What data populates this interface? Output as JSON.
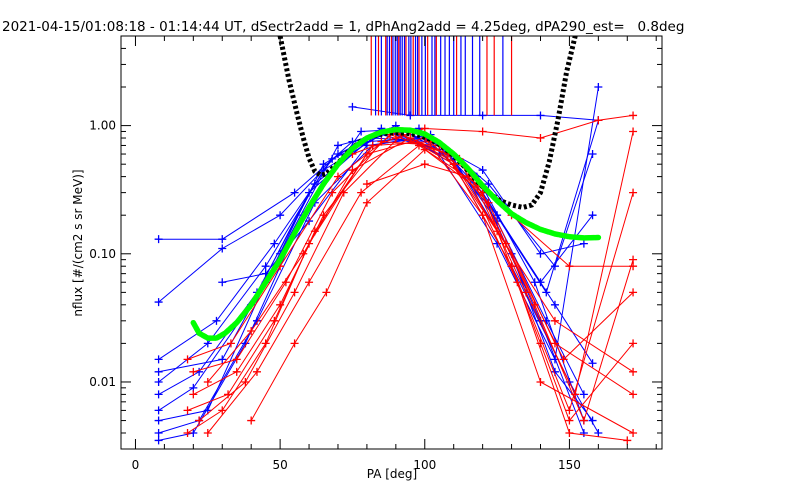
{
  "chart_data": {
    "type": "line",
    "title": "2021-04-15/01:08:18 - 01:14:44 UT, dSectr2add = 1, dPhAng2add = 4.25deg, dPA290_est=   0.8deg",
    "xlabel": "PA [deg]",
    "ylabel": "nflux [#/(cm2 s sr MeV)]",
    "xlim": [
      -5,
      182
    ],
    "ylim": [
      0.003,
      5.0
    ],
    "yscale": "log",
    "grid": false,
    "x_ticks": [
      0,
      50,
      100,
      150
    ],
    "x_tick_labels": [
      "0",
      "50",
      "100",
      "150"
    ],
    "y_ticks": [
      0.01,
      0.1,
      1.0
    ],
    "y_tick_labels": [
      "0.01",
      "0.10",
      "1.00"
    ],
    "colors": {
      "series_a": "#0000ff",
      "series_b": "#ff0000",
      "fit_black": "#000000",
      "fit_green": "#00ff00"
    },
    "series": [
      {
        "color": "blue",
        "marker": "+",
        "values": [
          [
            8,
            0.13
          ],
          [
            30,
            0.13
          ],
          [
            55,
            0.3
          ],
          [
            75,
            0.75
          ],
          [
            90,
            0.95
          ],
          [
            105,
            0.7
          ],
          [
            120,
            0.3
          ],
          [
            140,
            0.03
          ],
          [
            155,
            0.004
          ]
        ]
      },
      {
        "color": "blue",
        "marker": "+",
        "values": [
          [
            8,
            0.042
          ],
          [
            30,
            0.11
          ],
          [
            50,
            0.2
          ],
          [
            70,
            0.6
          ],
          [
            90,
            1.0
          ],
          [
            110,
            0.55
          ],
          [
            130,
            0.1
          ],
          [
            145,
            0.012
          ],
          [
            158,
            0.005
          ]
        ]
      },
      {
        "color": "blue",
        "marker": "+",
        "values": [
          [
            8,
            0.015
          ],
          [
            28,
            0.03
          ],
          [
            48,
            0.12
          ],
          [
            68,
            0.55
          ],
          [
            88,
            0.9
          ],
          [
            108,
            0.6
          ],
          [
            125,
            0.18
          ],
          [
            142,
            0.03
          ],
          [
            155,
            0.008
          ]
        ]
      },
      {
        "color": "blue",
        "marker": "+",
        "values": [
          [
            8,
            0.01
          ],
          [
            25,
            0.02
          ],
          [
            45,
            0.08
          ],
          [
            65,
            0.45
          ],
          [
            85,
            0.85
          ],
          [
            105,
            0.65
          ],
          [
            125,
            0.2
          ],
          [
            145,
            0.04
          ],
          [
            158,
            0.014
          ]
        ]
      },
      {
        "color": "blue",
        "marker": "+",
        "values": [
          [
            8,
            0.008
          ],
          [
            22,
            0.012
          ],
          [
            42,
            0.05
          ],
          [
            62,
            0.35
          ],
          [
            82,
            0.8
          ],
          [
            102,
            0.75
          ],
          [
            122,
            0.25
          ],
          [
            142,
            0.05
          ],
          [
            160,
            1.1
          ]
        ]
      },
      {
        "color": "blue",
        "marker": "+",
        "values": [
          [
            8,
            0.006
          ],
          [
            20,
            0.009
          ],
          [
            40,
            0.04
          ],
          [
            60,
            0.3
          ],
          [
            80,
            0.75
          ],
          [
            100,
            0.8
          ],
          [
            120,
            0.3
          ],
          [
            140,
            0.06
          ],
          [
            158,
            0.2
          ]
        ]
      },
      {
        "color": "blue",
        "marker": "+",
        "values": [
          [
            8,
            0.005
          ],
          [
            25,
            0.006
          ],
          [
            45,
            0.06
          ],
          [
            65,
            0.5
          ],
          [
            85,
            0.95
          ],
          [
            105,
            0.6
          ],
          [
            125,
            0.12
          ],
          [
            145,
            0.015
          ],
          [
            160,
            2.0
          ]
        ]
      },
      {
        "color": "blue",
        "marker": "+",
        "values": [
          [
            8,
            0.004
          ],
          [
            22,
            0.005
          ],
          [
            42,
            0.03
          ],
          [
            62,
            0.25
          ],
          [
            82,
            0.7
          ],
          [
            102,
            0.85
          ],
          [
            122,
            0.35
          ],
          [
            145,
            0.08
          ],
          [
            158,
            0.6
          ]
        ]
      },
      {
        "color": "blue",
        "marker": "+",
        "values": [
          [
            8,
            0.0035
          ],
          [
            20,
            0.004
          ],
          [
            38,
            0.02
          ],
          [
            58,
            0.2
          ],
          [
            78,
            0.9
          ],
          [
            98,
            0.95
          ],
          [
            118,
            0.4
          ],
          [
            138,
            0.06
          ],
          [
            155,
            0.005
          ]
        ]
      },
      {
        "color": "blue",
        "marker": "+",
        "values": [
          [
            8,
            0.012
          ],
          [
            30,
            0.015
          ],
          [
            50,
            0.1
          ],
          [
            70,
            0.7
          ],
          [
            90,
            0.92
          ],
          [
            110,
            0.5
          ],
          [
            130,
            0.08
          ],
          [
            150,
            0.01
          ],
          [
            160,
            0.004
          ]
        ]
      },
      {
        "color": "blue",
        "marker": "+",
        "values": [
          [
            75,
            1.4
          ],
          [
            95,
            1.2
          ],
          [
            120,
            1.2
          ],
          [
            140,
            1.2
          ],
          [
            160,
            1.1
          ]
        ]
      },
      {
        "color": "blue",
        "marker": "+",
        "values": [
          [
            30,
            0.06
          ],
          [
            45,
            0.07
          ],
          [
            60,
            0.18
          ],
          [
            80,
            0.7
          ],
          [
            100,
            0.8
          ],
          [
            120,
            0.45
          ],
          [
            140,
            0.1
          ],
          [
            155,
            0.12
          ]
        ]
      },
      {
        "color": "red",
        "marker": "+",
        "values": [
          [
            18,
            0.004
          ],
          [
            30,
            0.006
          ],
          [
            45,
            0.02
          ],
          [
            60,
            0.12
          ],
          [
            80,
            0.6
          ],
          [
            100,
            0.8
          ],
          [
            120,
            0.2
          ],
          [
            140,
            0.01
          ],
          [
            172,
            0.004
          ]
        ]
      },
      {
        "color": "red",
        "marker": "+",
        "values": [
          [
            18,
            0.006
          ],
          [
            32,
            0.008
          ],
          [
            48,
            0.03
          ],
          [
            62,
            0.15
          ],
          [
            82,
            0.7
          ],
          [
            102,
            0.75
          ],
          [
            122,
            0.25
          ],
          [
            145,
            0.02
          ],
          [
            172,
            0.008
          ]
        ]
      },
      {
        "color": "red",
        "marker": "+",
        "values": [
          [
            20,
            0.008
          ],
          [
            35,
            0.012
          ],
          [
            50,
            0.04
          ],
          [
            65,
            0.2
          ],
          [
            85,
            0.75
          ],
          [
            105,
            0.7
          ],
          [
            125,
            0.15
          ],
          [
            145,
            0.03
          ],
          [
            172,
            0.012
          ]
        ]
      },
      {
        "color": "red",
        "marker": "+",
        "values": [
          [
            20,
            0.012
          ],
          [
            35,
            0.015
          ],
          [
            52,
            0.06
          ],
          [
            68,
            0.3
          ],
          [
            88,
            0.85
          ],
          [
            108,
            0.6
          ],
          [
            128,
            0.12
          ],
          [
            148,
            0.015
          ],
          [
            172,
            0.05
          ]
        ]
      },
      {
        "color": "red",
        "marker": "+",
        "values": [
          [
            18,
            0.015
          ],
          [
            33,
            0.02
          ],
          [
            50,
            0.08
          ],
          [
            70,
            0.4
          ],
          [
            90,
            0.9
          ],
          [
            110,
            0.5
          ],
          [
            130,
            0.08
          ],
          [
            150,
            0.006
          ],
          [
            172,
            0.3
          ]
        ]
      },
      {
        "color": "red",
        "marker": "+",
        "values": [
          [
            22,
            0.005
          ],
          [
            38,
            0.01
          ],
          [
            55,
            0.05
          ],
          [
            72,
            0.3
          ],
          [
            92,
            0.85
          ],
          [
            112,
            0.55
          ],
          [
            132,
            0.06
          ],
          [
            150,
            0.004
          ],
          [
            170,
            0.0035
          ]
        ]
      },
      {
        "color": "red",
        "marker": "+",
        "values": [
          [
            25,
            0.01
          ],
          [
            40,
            0.025
          ],
          [
            58,
            0.1
          ],
          [
            75,
            0.45
          ],
          [
            95,
            0.8
          ],
          [
            115,
            0.45
          ],
          [
            135,
            0.05
          ],
          [
            152,
            0.008
          ],
          [
            172,
            0.9
          ]
        ]
      },
      {
        "color": "red",
        "marker": "+",
        "values": [
          [
            25,
            0.004
          ],
          [
            42,
            0.012
          ],
          [
            60,
            0.06
          ],
          [
            78,
            0.3
          ],
          [
            98,
            0.7
          ],
          [
            118,
            0.35
          ],
          [
            138,
            0.04
          ],
          [
            155,
            0.005
          ],
          [
            172,
            0.09
          ]
        ]
      },
      {
        "color": "red",
        "marker": "+",
        "values": [
          [
            75,
            0.6
          ],
          [
            90,
            0.8
          ],
          [
            100,
            0.95
          ],
          [
            120,
            0.9
          ],
          [
            140,
            0.8
          ],
          [
            160,
            1.1
          ],
          [
            172,
            1.2
          ]
        ]
      },
      {
        "color": "red",
        "marker": "+",
        "values": [
          [
            80,
            0.35
          ],
          [
            100,
            0.5
          ],
          [
            115,
            0.4
          ],
          [
            130,
            0.2
          ],
          [
            150,
            0.08
          ],
          [
            172,
            0.08
          ]
        ]
      },
      {
        "color": "red",
        "marker": "+",
        "values": [
          [
            40,
            0.005
          ],
          [
            55,
            0.02
          ],
          [
            66,
            0.05
          ],
          [
            80,
            0.25
          ],
          [
            100,
            0.65
          ],
          [
            120,
            0.3
          ],
          [
            140,
            0.02
          ],
          [
            150,
            0.005
          ],
          [
            172,
            0.02
          ]
        ]
      }
    ],
    "fits": [
      {
        "color": "black",
        "style": "dashed",
        "values": [
          [
            50,
            5.0
          ],
          [
            53,
            2.3
          ],
          [
            56,
            1.2
          ],
          [
            58,
            0.8
          ],
          [
            60,
            0.56
          ],
          [
            62,
            0.44
          ],
          [
            64,
            0.41
          ],
          [
            66,
            0.42
          ],
          [
            70,
            0.51
          ],
          [
            74,
            0.64
          ],
          [
            78,
            0.76
          ],
          [
            82,
            0.83
          ],
          [
            86,
            0.87
          ],
          [
            90,
            0.88
          ],
          [
            94,
            0.87
          ],
          [
            98,
            0.84
          ],
          [
            102,
            0.78
          ],
          [
            106,
            0.69
          ],
          [
            110,
            0.58
          ],
          [
            114,
            0.47
          ],
          [
            118,
            0.37
          ],
          [
            122,
            0.3
          ],
          [
            126,
            0.26
          ],
          [
            130,
            0.24
          ],
          [
            134,
            0.23
          ],
          [
            137,
            0.24
          ],
          [
            140,
            0.3
          ],
          [
            143,
            0.52
          ],
          [
            146,
            1.1
          ],
          [
            149,
            2.6
          ],
          [
            152,
            5.0
          ]
        ]
      },
      {
        "color": "green",
        "style": "dotted",
        "values": [
          [
            20,
            0.029
          ],
          [
            22,
            0.024
          ],
          [
            25,
            0.022
          ],
          [
            28,
            0.022
          ],
          [
            31,
            0.024
          ],
          [
            35,
            0.029
          ],
          [
            40,
            0.04
          ],
          [
            45,
            0.06
          ],
          [
            50,
            0.09
          ],
          [
            55,
            0.145
          ],
          [
            60,
            0.23
          ],
          [
            65,
            0.35
          ],
          [
            70,
            0.5
          ],
          [
            75,
            0.66
          ],
          [
            80,
            0.8
          ],
          [
            85,
            0.89
          ],
          [
            90,
            0.93
          ],
          [
            95,
            0.92
          ],
          [
            100,
            0.86
          ],
          [
            105,
            0.74
          ],
          [
            110,
            0.6
          ],
          [
            115,
            0.46
          ],
          [
            120,
            0.34
          ],
          [
            125,
            0.26
          ],
          [
            130,
            0.205
          ],
          [
            135,
            0.175
          ],
          [
            140,
            0.155
          ],
          [
            145,
            0.143
          ],
          [
            150,
            0.136
          ],
          [
            155,
            0.133
          ],
          [
            160,
            0.134
          ]
        ]
      }
    ],
    "vlines": [
      {
        "color": "red",
        "x": [
          81.5,
          84.0,
          86.5,
          88.5,
          91.0,
          93.5,
          96.0,
          98.0,
          101.0,
          104.0,
          111.0,
          121.5,
          124.0,
          130.0
        ]
      },
      {
        "color": "blue",
        "x": [
          83.0,
          85.0,
          87.0,
          87.8,
          89.0,
          89.8,
          90.5,
          91.5,
          92.2,
          93.0,
          94.5,
          95.2,
          96.8,
          97.5,
          99.0,
          100.2,
          102.5,
          103.5,
          105.5,
          107.0,
          108.5,
          110.0,
          112.5,
          114.0,
          116.5,
          119.0,
          127.0
        ]
      }
    ]
  }
}
